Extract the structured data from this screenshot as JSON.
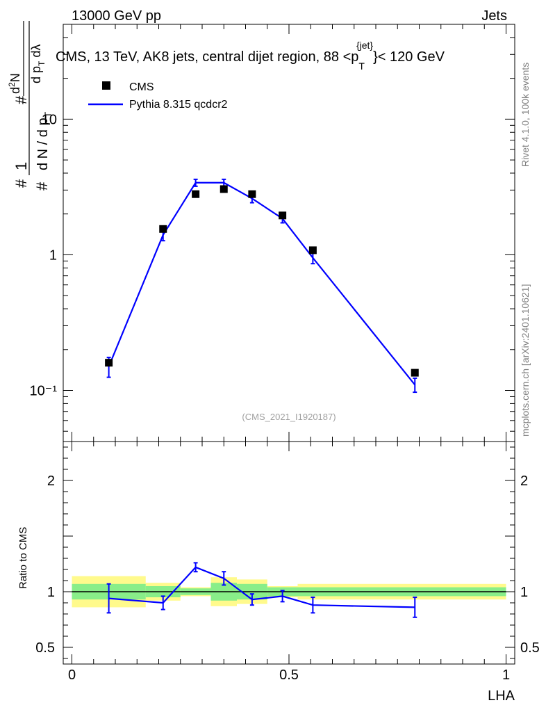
{
  "header": {
    "left": "13000 GeV pp",
    "right": "Jets"
  },
  "plot_title": {
    "main": "CMS, 13 TeV, AK8 jets, central dijet region, 88 <p",
    "sup": "{jet}",
    "sub": "T",
    "tail": "}< 120 GeV"
  },
  "y_axis_label": {
    "num_hash": "#",
    "num_one": "1",
    "den_hash": "#",
    "den_main": "d N / d p",
    "den_sub": "T",
    "num2_hash": "#",
    "num2_main": "d",
    "num2_sup": "2",
    "num2_tail": "N",
    "den2_main": "d p",
    "den2_sub": "T",
    "den2_tail": " dλ"
  },
  "watermark": "(CMS_2021_I1920187)",
  "side_labels": {
    "top": "Rivet 4.1.0,  100k events",
    "bottom": "mcplots.cern.ch [arXiv:2401.10621]"
  },
  "legend": {
    "data_label": "CMS",
    "mc_label": "Pythia 8.315 qcdcr2"
  },
  "colors": {
    "mc": "#0000ff",
    "band_inner": "#89ee89",
    "band_outer": "#fffa8c",
    "data": "#000000"
  },
  "chart_data": [
    {
      "type": "scatter",
      "panel": "main",
      "title": "CMS, 13 TeV, AK8 jets, central dijet region, 88 <p_T^{jet}< 120 GeV",
      "xlabel": "LHA",
      "ylabel": "1/N dN/dp_T d^2N/dp_T dλ",
      "xlim": [
        -0.02,
        1.02
      ],
      "ylim": [
        0.042,
        50
      ],
      "yscale": "log",
      "y_tick_labels": [
        "10",
        "1",
        "10⁻¹"
      ],
      "y_ticks": [
        10,
        1,
        0.1
      ],
      "series": [
        {
          "name": "CMS",
          "x": [
            0.085,
            0.21,
            0.285,
            0.35,
            0.415,
            0.485,
            0.555,
            0.79
          ],
          "values": [
            0.16,
            1.55,
            2.8,
            3.05,
            2.8,
            1.95,
            1.08,
            0.135
          ]
        },
        {
          "name": "Pythia 8.315 qcdcr2",
          "x": [
            0.085,
            0.21,
            0.285,
            0.35,
            0.415,
            0.485,
            0.555,
            0.79
          ],
          "values": [
            0.15,
            1.4,
            3.4,
            3.4,
            2.6,
            1.85,
            0.95,
            0.11
          ],
          "err_low": [
            0.125,
            1.27,
            3.2,
            3.2,
            2.42,
            1.72,
            0.86,
            0.097
          ],
          "err_high": [
            0.175,
            1.53,
            3.6,
            3.6,
            2.78,
            1.98,
            1.04,
            0.123
          ]
        }
      ]
    },
    {
      "type": "line",
      "panel": "ratio",
      "xlabel": "LHA",
      "ylabel": "Ratio to CMS",
      "xlim": [
        -0.02,
        1.02
      ],
      "ylim": [
        0.35,
        2.35
      ],
      "y_tick_labels": [
        "0.5",
        "1",
        "2"
      ],
      "y_ticks": [
        0.5,
        1,
        2
      ],
      "x_tick_labels": [
        "0",
        "0.5",
        "1"
      ],
      "x_ticks": [
        0,
        0.5,
        1
      ],
      "reference": 1,
      "bins": [
        {
          "lo": 0.0,
          "hi": 0.17,
          "inner": [
            0.93,
            1.07
          ],
          "outer": [
            0.86,
            1.14
          ]
        },
        {
          "lo": 0.17,
          "hi": 0.25,
          "inner": [
            0.95,
            1.05
          ],
          "outer": [
            0.92,
            1.08
          ]
        },
        {
          "lo": 0.25,
          "hi": 0.32,
          "inner": [
            0.97,
            1.03
          ],
          "outer": [
            0.96,
            1.04
          ]
        },
        {
          "lo": 0.32,
          "hi": 0.38,
          "inner": [
            0.92,
            1.08
          ],
          "outer": [
            0.87,
            1.13
          ]
        },
        {
          "lo": 0.38,
          "hi": 0.45,
          "inner": [
            0.93,
            1.07
          ],
          "outer": [
            0.89,
            1.11
          ]
        },
        {
          "lo": 0.45,
          "hi": 0.52,
          "inner": [
            0.96,
            1.04
          ],
          "outer": [
            0.95,
            1.05
          ]
        },
        {
          "lo": 0.52,
          "hi": 1.0,
          "inner": [
            0.96,
            1.04
          ],
          "outer": [
            0.93,
            1.07
          ]
        }
      ],
      "series": [
        {
          "name": "Pythia 8.315 qcdcr2",
          "x": [
            0.085,
            0.21,
            0.285,
            0.35,
            0.415,
            0.485,
            0.555,
            0.79
          ],
          "values": [
            0.94,
            0.9,
            1.22,
            1.12,
            0.93,
            0.96,
            0.88,
            0.86
          ],
          "err_low": [
            0.81,
            0.84,
            1.18,
            1.06,
            0.88,
            0.91,
            0.81,
            0.77
          ],
          "err_high": [
            1.07,
            0.96,
            1.26,
            1.18,
            0.98,
            1.01,
            0.95,
            0.95
          ]
        }
      ]
    }
  ]
}
